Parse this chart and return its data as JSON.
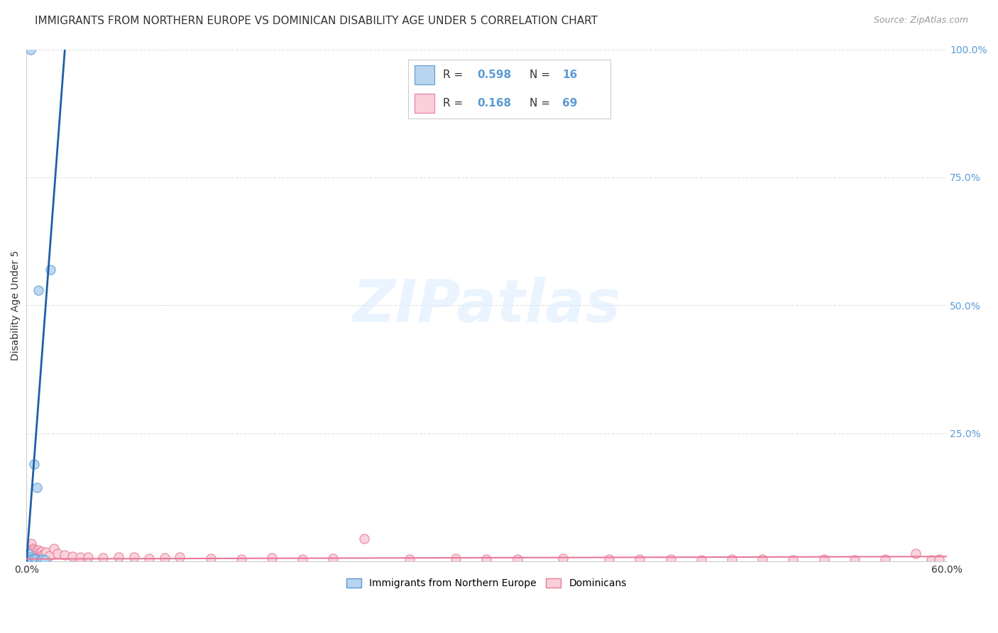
{
  "title": "IMMIGRANTS FROM NORTHERN EUROPE VS DOMINICAN DISABILITY AGE UNDER 5 CORRELATION CHART",
  "source": "Source: ZipAtlas.com",
  "ylabel": "Disability Age Under 5",
  "legend_blue_label": "Immigrants from Northern Europe",
  "legend_pink_label": "Dominicans",
  "R_blue": "0.598",
  "N_blue": "16",
  "R_pink": "0.168",
  "N_pink": "69",
  "blue_fill_color": "#b8d4ee",
  "blue_edge_color": "#5b9bd5",
  "pink_fill_color": "#f9d0da",
  "pink_edge_color": "#e87a9a",
  "blue_line_color": "#1f5fa6",
  "pink_line_color": "#e8799a",
  "dashed_line_color": "#aac4d8",
  "blue_scatter_x": [
    0.28,
    0.75,
    1.55,
    0.48,
    0.68,
    0.12,
    0.18,
    0.22,
    0.32,
    0.42,
    0.55,
    0.62,
    0.85,
    0.95,
    1.05,
    1.2
  ],
  "blue_scatter_y": [
    100.0,
    53.0,
    57.0,
    19.0,
    14.5,
    1.5,
    0.8,
    0.5,
    0.3,
    0.4,
    0.6,
    0.5,
    0.3,
    0.2,
    0.4,
    0.3
  ],
  "pink_scatter_x": [
    0.05,
    0.08,
    0.1,
    0.12,
    0.15,
    0.18,
    0.2,
    0.22,
    0.25,
    0.28,
    0.3,
    0.32,
    0.35,
    0.38,
    0.4,
    0.42,
    0.45,
    0.48,
    0.5,
    0.55,
    0.6,
    0.65,
    0.7,
    0.75,
    0.8,
    0.85,
    0.9,
    0.95,
    1.0,
    1.1,
    1.2,
    1.3,
    1.5,
    1.8,
    2.0,
    2.5,
    3.0,
    3.5,
    4.0,
    5.0,
    6.0,
    7.0,
    8.0,
    9.0,
    10.0,
    12.0,
    14.0,
    16.0,
    18.0,
    20.0,
    22.0,
    25.0,
    28.0,
    30.0,
    32.0,
    35.0,
    38.0,
    40.0,
    42.0,
    44.0,
    46.0,
    48.0,
    50.0,
    52.0,
    54.0,
    56.0,
    58.0,
    59.0,
    59.5
  ],
  "pink_scatter_y": [
    0.8,
    1.5,
    2.5,
    1.8,
    2.2,
    3.0,
    1.6,
    2.8,
    2.0,
    1.4,
    3.5,
    1.9,
    2.4,
    1.7,
    2.1,
    1.5,
    2.6,
    1.8,
    2.3,
    1.6,
    2.0,
    1.4,
    1.8,
    2.2,
    1.5,
    1.9,
    1.3,
    1.7,
    2.0,
    1.4,
    1.6,
    1.8,
    1.2,
    2.5,
    1.5,
    1.3,
    1.0,
    0.8,
    0.9,
    0.7,
    0.8,
    0.9,
    0.6,
    0.7,
    0.8,
    0.6,
    0.5,
    0.7,
    0.5,
    0.6,
    4.5,
    0.5,
    0.6,
    0.4,
    0.5,
    0.6,
    0.4,
    0.5,
    0.4,
    0.3,
    0.4,
    0.5,
    0.3,
    0.4,
    0.3,
    0.4,
    1.5,
    0.3,
    0.4
  ],
  "xlim": [
    0.0,
    60.0
  ],
  "ylim": [
    0.0,
    100.0
  ],
  "yticks": [
    0,
    25,
    50,
    75,
    100
  ],
  "ytick_labels": [
    "",
    "25.0%",
    "50.0%",
    "75.0%",
    "100.0%"
  ],
  "xtick_labels": [
    "0.0%",
    "60.0%"
  ],
  "blue_reg_x0": 0.0,
  "blue_reg_y0": 0.0,
  "blue_reg_slope": 40.0,
  "blue_solid_end_x": 2.5,
  "blue_dashed_end_x": 10.5,
  "pink_reg_slope": 0.008,
  "pink_reg_intercept": 0.5,
  "watermark_text": "ZIPatlas",
  "watermark_color": "#ddeeff",
  "title_fontsize": 11,
  "source_fontsize": 9,
  "tick_fontsize": 10,
  "ylabel_fontsize": 10,
  "marker_size": 90,
  "tick_color": "#5b9bd5",
  "grid_color": "#d8d8d8",
  "background_color": "#ffffff"
}
